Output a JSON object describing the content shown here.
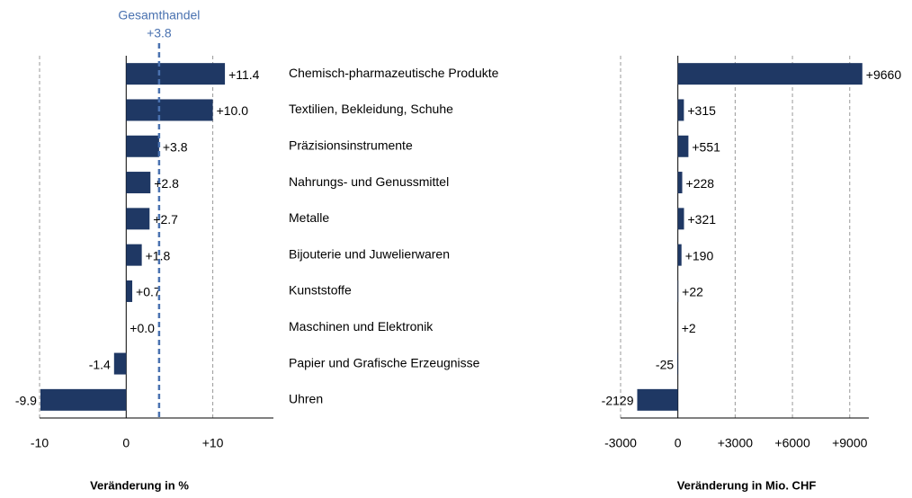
{
  "chart_data": [
    {
      "type": "bar",
      "orientation": "horizontal",
      "categories": [
        "Chemisch-pharmazeutische Produkte",
        "Textilien, Bekleidung, Schuhe",
        "Präzisionsinstrumente",
        "Nahrungs- und Genussmittel",
        "Metalle",
        "Bijouterie und Juwelierwaren",
        "Kunststoffe",
        "Maschinen und Elektronik",
        "Papier und Grafische Erzeugnisse",
        "Uhren"
      ],
      "values": [
        11.4,
        10.0,
        3.8,
        2.8,
        2.7,
        1.8,
        0.7,
        0.0,
        -1.4,
        -9.9
      ],
      "value_labels": [
        "+11.4",
        "+10.0",
        "+3.8",
        "+2.8",
        "+2.7",
        "+1.8",
        "+0.7",
        "+0.0",
        "-1.4",
        "-9.9"
      ],
      "color": "#1f3864",
      "xlim": [
        -10,
        17
      ],
      "xticks": [
        -10,
        0,
        {
          "value": 10,
          "label": "+10"
        }
      ],
      "x_label": "Veränderung in %",
      "reference_line": {
        "name": "Gesamthandel",
        "value": 3.8,
        "label": "+3.8",
        "color": "#4a72b0"
      },
      "grid": true
    },
    {
      "type": "bar",
      "orientation": "horizontal",
      "values": [
        9660,
        315,
        551,
        228,
        321,
        190,
        22,
        2,
        -25,
        -2129
      ],
      "value_labels": [
        "+9660",
        "+315",
        "+551",
        "+228",
        "+321",
        "+190",
        "+22",
        "+2",
        "-25",
        "-2129"
      ],
      "color": "#1f3864",
      "xlim": [
        -3000,
        10000
      ],
      "xticks": [
        -3000,
        0,
        {
          "value": 3000,
          "label": "+3000"
        },
        {
          "value": 6000,
          "label": "+6000"
        },
        {
          "value": 9000,
          "label": "+9000"
        }
      ],
      "x_label": "Veränderung in Mio. CHF",
      "grid": true
    }
  ]
}
